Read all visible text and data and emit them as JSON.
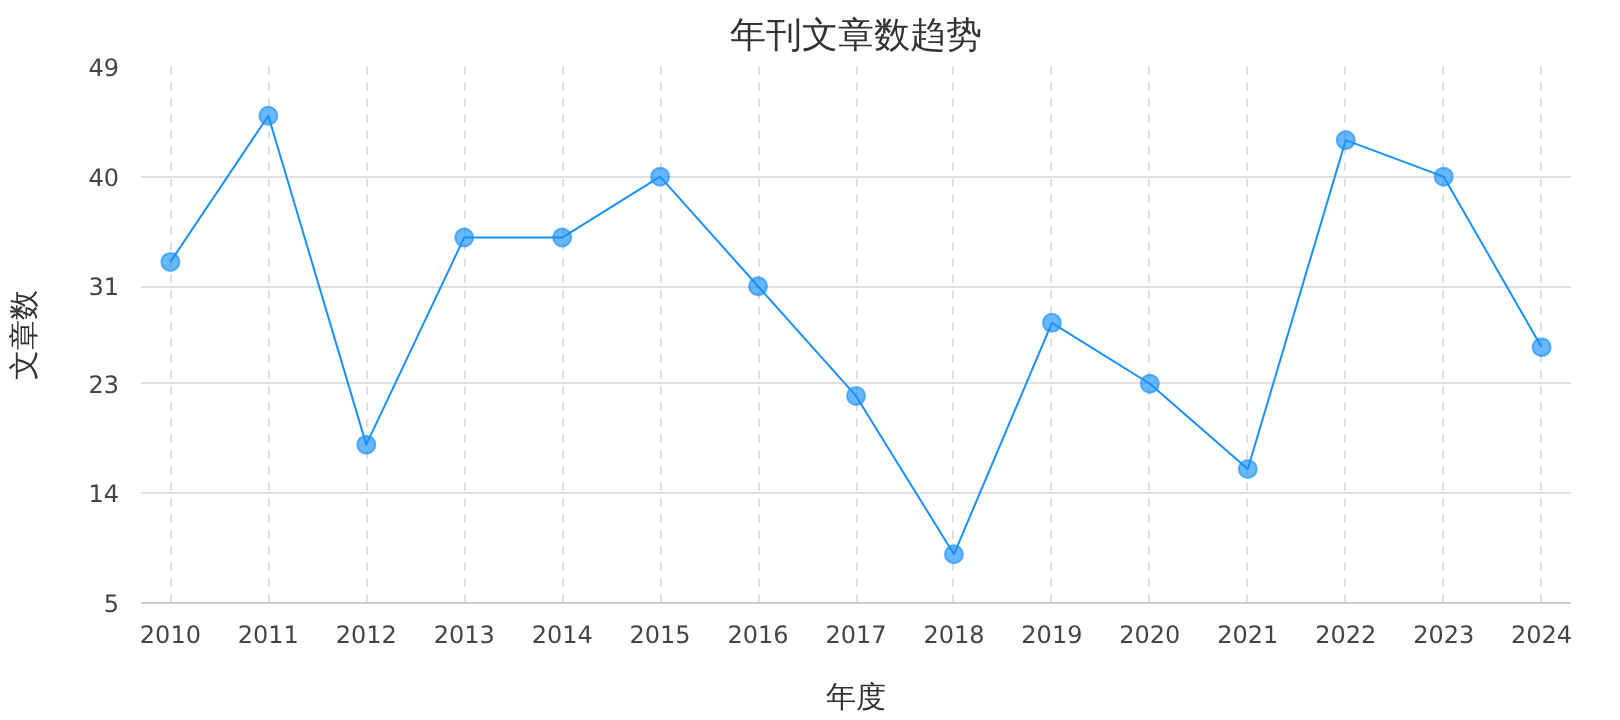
{
  "chart_data": {
    "type": "line",
    "title": "年刊文章数趋势",
    "xlabel": "年度",
    "ylabel": "文章数",
    "categories": [
      "2010",
      "2011",
      "2012",
      "2013",
      "2014",
      "2015",
      "2016",
      "2017",
      "2018",
      "2019",
      "2020",
      "2021",
      "2022",
      "2023",
      "2024"
    ],
    "series": [
      {
        "color": "#1890ff",
        "values": [
          33,
          45,
          18,
          35,
          35,
          40,
          31,
          22,
          9,
          28,
          23,
          16,
          43,
          40,
          26
        ]
      }
    ],
    "ylim": [
      5,
      49
    ],
    "yticks": [
      5,
      14,
      23,
      31,
      40,
      49
    ],
    "grid": true,
    "marker": "circle",
    "line_style": "solid"
  }
}
